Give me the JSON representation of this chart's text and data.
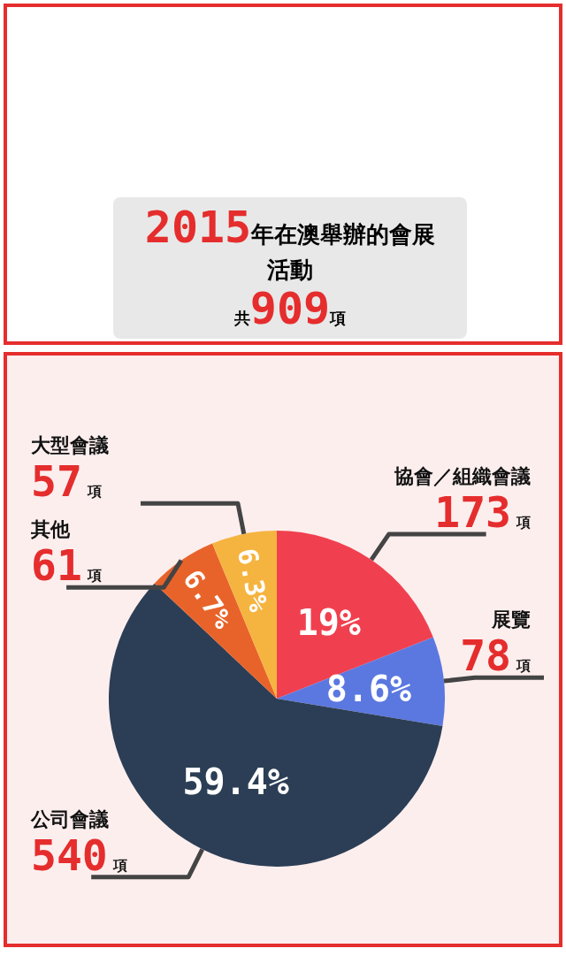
{
  "chart_data": {
    "type": "pie",
    "title": "2015年在澳舉辦的會展活動",
    "subtitle": "共909項",
    "categories": [
      "協會／組織會議",
      "展覽",
      "公司會議",
      "其他",
      "大型會議"
    ],
    "values": [
      173,
      78,
      540,
      61,
      57
    ],
    "colors": [
      "#f0404f",
      "#5b78e0",
      "#2b3e55",
      "#e8632a",
      "#f5b440"
    ],
    "value_labels": [
      "173項",
      "78項",
      "540項",
      "61項",
      "57項"
    ],
    "annotations": [
      "19%",
      "8.6%",
      "59.4%",
      "6.7%",
      "6.3%"
    ]
  }
}
